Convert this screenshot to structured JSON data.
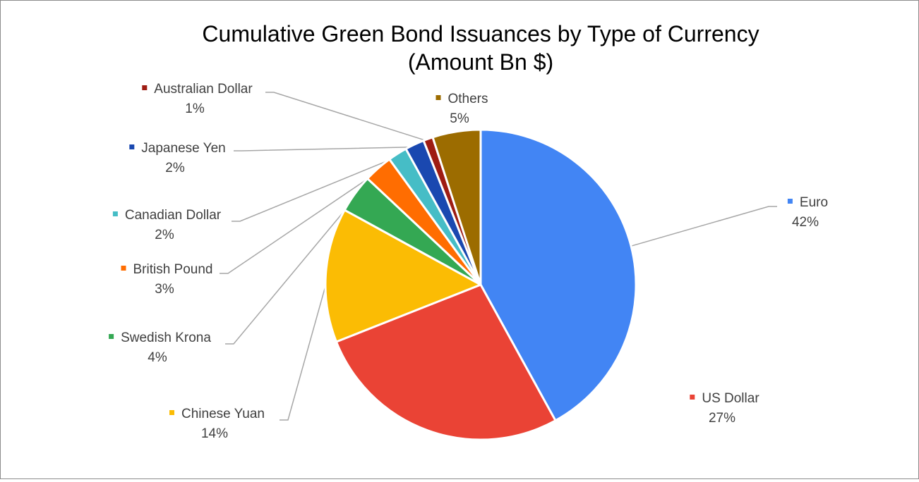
{
  "chart_data": {
    "type": "pie",
    "title": "Cumulative Green Bond Issuances by Type of Currency",
    "subtitle": "(Amount Bn $)",
    "slices": [
      {
        "name": "Euro",
        "value": 42,
        "label": "42%",
        "color": "#4285F4"
      },
      {
        "name": "US Dollar",
        "value": 27,
        "label": "27%",
        "color": "#EA4335"
      },
      {
        "name": "Chinese Yuan",
        "value": 14,
        "label": "14%",
        "color": "#FBBC04"
      },
      {
        "name": "Swedish Krona",
        "value": 4,
        "label": "4%",
        "color": "#34A853"
      },
      {
        "name": "British Pound",
        "value": 3,
        "label": "3%",
        "color": "#FF6D01"
      },
      {
        "name": "Canadian Dollar",
        "value": 2,
        "label": "2%",
        "color": "#46BDC6"
      },
      {
        "name": "Japanese Yen",
        "value": 2,
        "label": "2%",
        "color": "#1A48B0"
      },
      {
        "name": "Australian Dollar",
        "value": 1,
        "label": "1%",
        "color": "#9E1C13"
      },
      {
        "name": "Others",
        "value": 5,
        "label": "5%",
        "color": "#9C6C00"
      }
    ]
  }
}
